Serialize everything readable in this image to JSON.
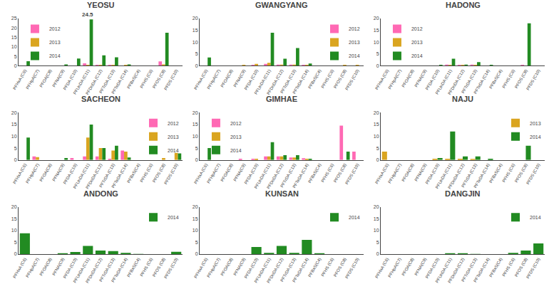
{
  "chart_data": [
    {
      "type": "bar",
      "title": "YEOSU",
      "categories": [
        "PFHxA (C6)",
        "PFHpA(C7)",
        "PFOA(C8)",
        "PFNA(C9)",
        "PFDA (C10)",
        "PFUnDA (C11)",
        "PFDoDA (C12)",
        "PFTrDA (C13)",
        "PFTeDA (C14)",
        "PFBxS(C4)",
        "PFHS (C6)",
        "PFOS (C8)",
        "PFDS (C10)"
      ],
      "series": [
        {
          "name": "2012",
          "color": "#FF69B4",
          "values": [
            0.0,
            0.0,
            0.0,
            0.0,
            0.0,
            1.3,
            0.5,
            0.3,
            0.1,
            0.0,
            0.0,
            2.3,
            0.0
          ]
        },
        {
          "name": "2013",
          "color": "#DAA520",
          "values": [
            0.0,
            0.0,
            0.0,
            0.0,
            0.0,
            0.5,
            0.3,
            0.2,
            0.3,
            0.0,
            0.0,
            0.7,
            0.0
          ]
        },
        {
          "name": "2014",
          "color": "#228B22",
          "values": [
            2.4,
            0.0,
            0.0,
            0.7,
            3.8,
            24.5,
            5.5,
            4.5,
            0.7,
            0.0,
            0.0,
            17.5,
            0.0
          ]
        }
      ],
      "annotations": [
        {
          "text": "24.5",
          "x": "PFUnDA (C11)",
          "y": 24.5
        }
      ],
      "ylim": [
        0,
        25
      ],
      "yticks": [
        0,
        5,
        10,
        15,
        20,
        25
      ],
      "grid": false,
      "legend": "upper left"
    },
    {
      "type": "bar",
      "title": "GWANGYANG",
      "categories": [
        "PFHxA (C6)",
        "PFHpA(C7)",
        "PFOA(C8)",
        "PFNA(C9)",
        "PFDA (C10)",
        "PFUnDA (C11)",
        "PFDoDA (C12)",
        "PFTrDA (C13)",
        "PFTeDA (C14)",
        "PFBxS(C4)",
        "PFHS (C6)",
        "PFOS (C8)",
        "PFDS (C10)"
      ],
      "series": [
        {
          "name": "2012",
          "color": "#FF69B4",
          "values": [
            0.0,
            0.0,
            0.0,
            0.0,
            0.2,
            0.8,
            0.5,
            0.5,
            0.2,
            0.0,
            0.0,
            0.0,
            0.0
          ]
        },
        {
          "name": "2013",
          "color": "#DAA520",
          "values": [
            0.0,
            0.0,
            0.0,
            0.3,
            0.8,
            1.2,
            0.5,
            0.5,
            0.3,
            0.0,
            0.0,
            0.2,
            0.2
          ]
        },
        {
          "name": "2014",
          "color": "#228B22",
          "values": [
            3.5,
            0.0,
            0.0,
            0.0,
            0.0,
            14.0,
            3.0,
            7.5,
            0.9,
            0.0,
            0.0,
            0.0,
            0.0
          ]
        }
      ],
      "ylim": [
        0,
        20
      ],
      "yticks": [
        0,
        5,
        10,
        15,
        20
      ],
      "grid": false,
      "legend": "upper right"
    },
    {
      "type": "bar",
      "title": "HADONG",
      "categories": [
        "PFHxA (C6)",
        "PFHpA(C7)",
        "PFOA(C8)",
        "PFNA(C9)",
        "PFDA (C10)",
        "PFUnDA (C11)",
        "PFDoDA (C12)",
        "PFTrDA (C13)",
        "PFTeDA (C14)",
        "PFBxS(C4)",
        "PFHS (C6)",
        "PFOS (C8)",
        "PFDS (C10)"
      ],
      "series": [
        {
          "name": "2012",
          "color": "#FF69B4",
          "values": [
            0.0,
            0.0,
            0.0,
            0.0,
            0.0,
            0.5,
            0.3,
            0.5,
            0.0,
            0.0,
            0.0,
            0.3,
            0.0
          ]
        },
        {
          "name": "2013",
          "color": "#DAA520",
          "values": [
            0.0,
            0.0,
            0.0,
            0.0,
            0.0,
            0.3,
            0.2,
            0.2,
            0.0,
            0.0,
            0.0,
            0.0,
            0.0
          ]
        },
        {
          "name": "2014",
          "color": "#228B22",
          "values": [
            0.0,
            0.0,
            0.0,
            0.0,
            0.2,
            3.0,
            0.5,
            1.5,
            0.2,
            0.0,
            0.0,
            18.0,
            0.0
          ]
        }
      ],
      "ylim": [
        0,
        20
      ],
      "yticks": [
        0,
        5,
        10,
        15,
        20
      ],
      "grid": false,
      "legend": "upper left"
    },
    {
      "type": "bar",
      "title": "SACHEON",
      "categories": [
        "PFHxA (C6)",
        "PFHpA(C7)",
        "PFOA(C8)",
        "PFNA(C9)",
        "PFDA (C10)",
        "PFUnDA (C11)",
        "PFDoDA (C12)",
        "PFTrDA (C13)",
        "PFTeDA (C14)",
        "PFBxS(C4)",
        "PFHS (C6)",
        "PFOS (C8)",
        "PFDS (C10)"
      ],
      "series": [
        {
          "name": "2012",
          "color": "#FF69B4",
          "values": [
            0.0,
            1.5,
            0.0,
            0.0,
            0.8,
            1.5,
            1.5,
            0.5,
            4.0,
            0.0,
            0.0,
            0.0,
            0.0
          ]
        },
        {
          "name": "2013",
          "color": "#DAA520",
          "values": [
            0.0,
            1.2,
            0.0,
            0.0,
            0.0,
            9.5,
            5.0,
            4.0,
            3.5,
            0.0,
            0.0,
            0.8,
            3.0
          ]
        },
        {
          "name": "2014",
          "color": "#228B22",
          "values": [
            9.5,
            0.0,
            0.0,
            0.8,
            0.0,
            15.0,
            5.0,
            6.0,
            1.0,
            0.0,
            0.0,
            0.0,
            2.8
          ]
        }
      ],
      "ylim": [
        0,
        20
      ],
      "yticks": [
        0,
        5,
        10,
        15,
        20
      ],
      "grid": false,
      "legend": "upper right"
    },
    {
      "type": "bar",
      "title": "GIMHAE",
      "categories": [
        "PFHxA (C6)",
        "PFHpA(C7)",
        "PFOA(C8)",
        "PFNA(C9)",
        "PFDA (C10)",
        "PFUnDA (C11)",
        "PFDoDA (C12)",
        "PFTrDA (C13)",
        "PFTeDA (C14)",
        "PFBxS(C4)",
        "PFHS (C6)",
        "PFOS (C8)",
        "PFDS (C10)"
      ],
      "series": [
        {
          "name": "2012",
          "color": "#FF69B4",
          "values": [
            0.0,
            0.0,
            0.0,
            0.5,
            0.5,
            1.5,
            1.5,
            1.0,
            0.7,
            0.0,
            0.0,
            14.5,
            3.5
          ]
        },
        {
          "name": "2013",
          "color": "#DAA520",
          "values": [
            0.0,
            0.0,
            0.0,
            0.0,
            0.5,
            1.5,
            1.5,
            1.0,
            0.5,
            0.0,
            0.0,
            0.0,
            0.0
          ]
        },
        {
          "name": "2014",
          "color": "#228B22",
          "values": [
            5.0,
            0.0,
            0.0,
            0.0,
            0.0,
            7.5,
            2.0,
            2.0,
            0.5,
            0.0,
            0.0,
            3.5,
            0.0
          ]
        }
      ],
      "ylim": [
        0,
        20
      ],
      "yticks": [
        0,
        5,
        10,
        15,
        20
      ],
      "grid": false,
      "legend": "upper left"
    },
    {
      "type": "bar",
      "title": "NAJU",
      "categories": [
        "PFHxA (C6)",
        "PFHpA(C7)",
        "PFOA(C8)",
        "PFNA(C9)",
        "PFDA (C10)",
        "PFUnDA (C11)",
        "PFDoDA (C12)",
        "PFTrDA (C13)",
        "PFTeDA (C14)",
        "PFBxS(C4)",
        "PFHS (C6)",
        "PFOS (C8)",
        "PFDS (C10)"
      ],
      "series": [
        {
          "name": "2013",
          "color": "#DAA520",
          "values": [
            3.5,
            0.0,
            0.0,
            0.0,
            0.5,
            0.5,
            0.5,
            0.3,
            0.0,
            0.0,
            0.0,
            0.0,
            0.0
          ]
        },
        {
          "name": "2014",
          "color": "#228B22",
          "values": [
            0.0,
            0.0,
            0.0,
            0.0,
            0.8,
            12.0,
            1.5,
            1.5,
            0.5,
            0.0,
            0.0,
            6.0,
            0.0
          ]
        }
      ],
      "ylim": [
        0,
        20
      ],
      "yticks": [
        0,
        5,
        10,
        15,
        20
      ],
      "grid": false,
      "legend": "upper right"
    },
    {
      "type": "bar",
      "title": "ANDONG",
      "categories": [
        "PFHxA (C6)",
        "PFHpA(C7)",
        "PFOA(C8)",
        "PFNA(C9)",
        "PFDA (C10)",
        "PFUnDA (C11)",
        "PFDoDA (C12)",
        "PFTrDA (C13)",
        "PFTeDA (C14)",
        "PFBxS(C4)",
        "PFHS (C6)",
        "PFOS (C8)",
        "PFDS (C10)"
      ],
      "series": [
        {
          "name": "2014",
          "color": "#228B22",
          "values": [
            8.8,
            0.0,
            0.0,
            0.2,
            0.9,
            3.5,
            1.5,
            1.3,
            0.5,
            0.1,
            0.0,
            0.0,
            1.0
          ]
        }
      ],
      "ylim": [
        0,
        20
      ],
      "yticks": [
        0,
        5,
        10,
        15,
        20
      ],
      "grid": false,
      "legend": "upper right"
    },
    {
      "type": "bar",
      "title": "KUNSAN",
      "categories": [
        "PFHxA (C6)",
        "PFHpA(C7)",
        "PFOA(C8)",
        "PFNA(C9)",
        "PFDA (C10)",
        "PFUnDA (C11)",
        "PFDoDA (C12)",
        "PFTrDA (C13)",
        "PFTeDA (C14)",
        "PFBxS(C4)",
        "PFHS (C6)",
        "PFOS (C8)",
        "PFDS (C10)"
      ],
      "series": [
        {
          "name": "2014",
          "color": "#228B22",
          "values": [
            0.0,
            0.0,
            0.0,
            0.0,
            3.0,
            0.5,
            3.5,
            0.5,
            6.0,
            0.2,
            0.0,
            0.0,
            0.0
          ]
        }
      ],
      "ylim": [
        0,
        20
      ],
      "yticks": [
        0,
        5,
        10,
        15,
        20
      ],
      "grid": false,
      "legend": "upper right"
    },
    {
      "type": "bar",
      "title": "DANGJIN",
      "categories": [
        "PFHxA (C6)",
        "PFHpA(C7)",
        "PFOA(C8)",
        "PFNA(C9)",
        "PFDA (C10)",
        "PFUnDA (C11)",
        "PFDoDA (C12)",
        "PFTrDA (C13)",
        "PFTeDA (C14)",
        "PFBxS(C4)",
        "PFHS (C6)",
        "PFOS (C8)",
        "PFDS (C10)"
      ],
      "series": [
        {
          "name": "2014",
          "color": "#228B22",
          "values": [
            0.0,
            0.0,
            0.0,
            0.0,
            0.0,
            0.3,
            0.2,
            0.1,
            0.0,
            0.0,
            0.5,
            1.5,
            4.5
          ]
        }
      ],
      "ylim": [
        0,
        20
      ],
      "yticks": [
        0,
        5,
        10,
        15,
        20
      ],
      "grid": false,
      "legend": "upper right"
    }
  ]
}
